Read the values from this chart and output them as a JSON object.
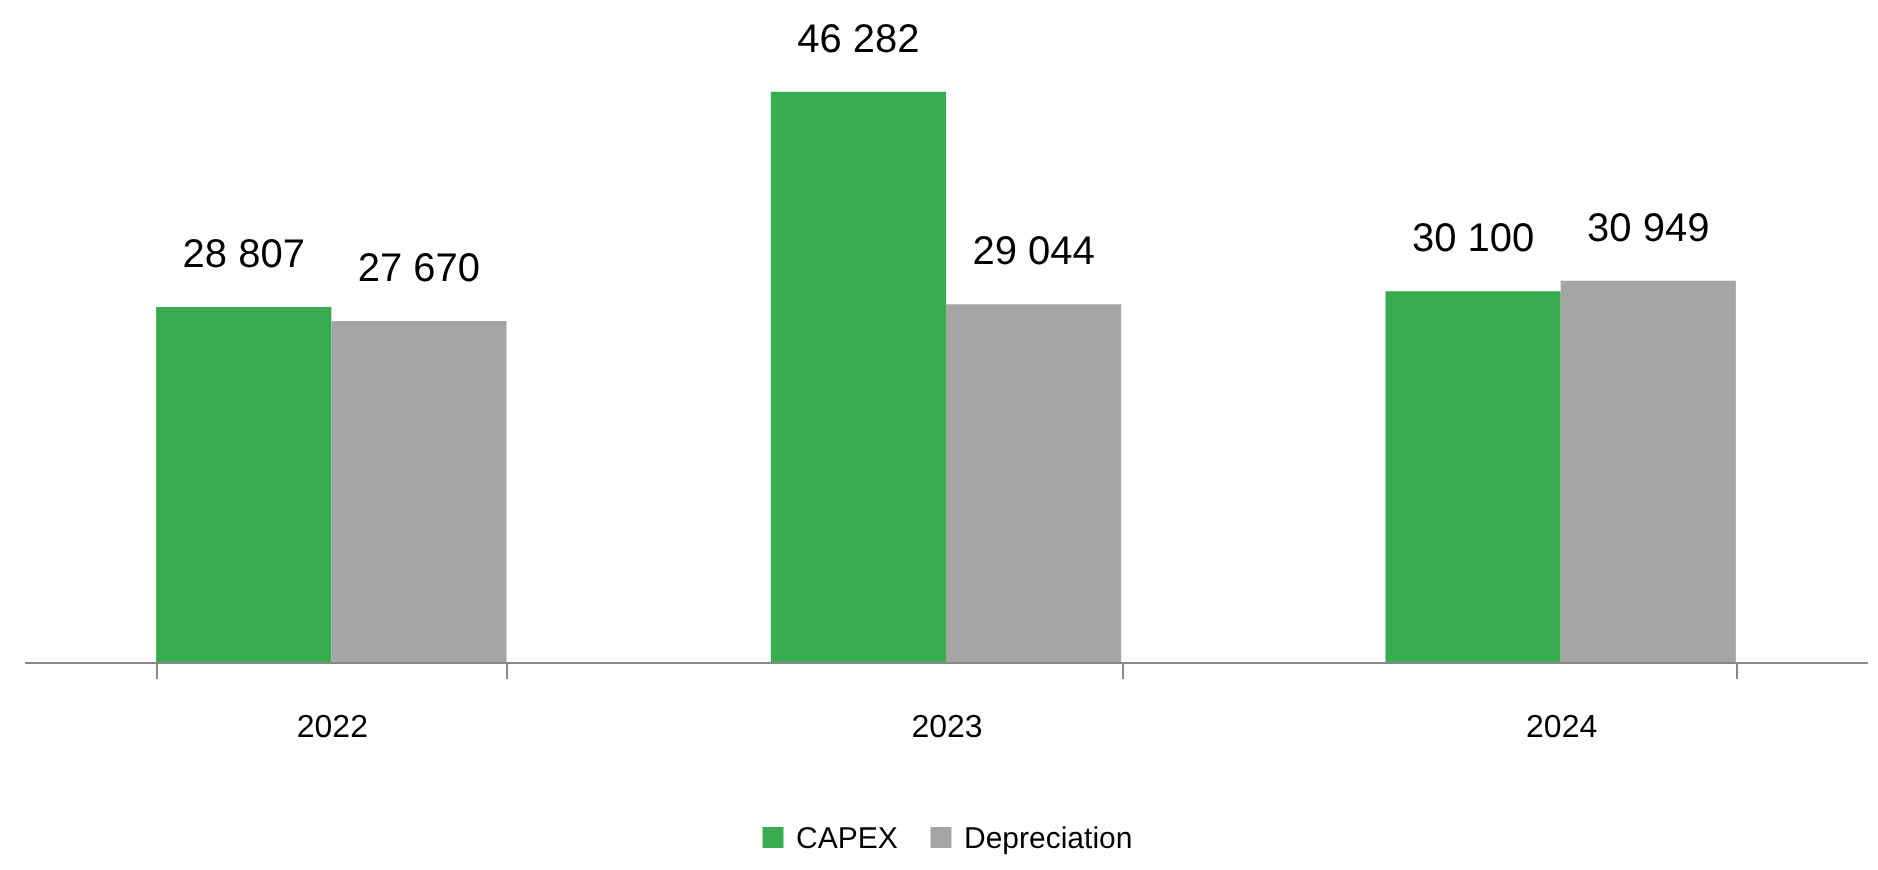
{
  "chart_data": {
    "type": "bar",
    "categories": [
      "2022",
      "2023",
      "2024"
    ],
    "series": [
      {
        "name": "CAPEX",
        "color": "#37ad4f",
        "values": [
          28807,
          46282,
          30100
        ],
        "value_labels": [
          "28 807",
          "46 282",
          "30 100"
        ]
      },
      {
        "name": "Depreciation",
        "color": "#a5a5a5",
        "values": [
          27670,
          29044,
          30949
        ],
        "value_labels": [
          "27 670",
          "29 044",
          "30 949"
        ]
      }
    ],
    "legend": "bottom"
  }
}
